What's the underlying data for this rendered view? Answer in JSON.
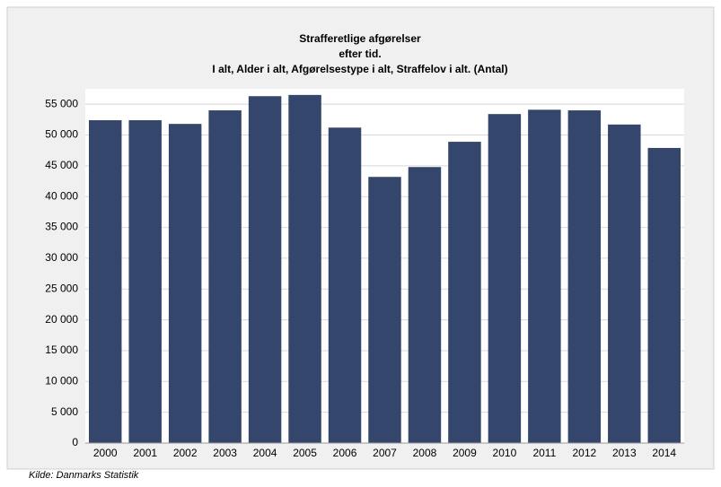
{
  "chart_data": {
    "type": "bar",
    "title": [
      "Strafferetlige afgørelser",
      "efter tid.",
      "I alt, Alder i alt, Afgørelsestype i alt, Straffelov i alt. (Antal)"
    ],
    "categories": [
      "2000",
      "2001",
      "2002",
      "2003",
      "2004",
      "2005",
      "2006",
      "2007",
      "2008",
      "2009",
      "2010",
      "2011",
      "2012",
      "2013",
      "2014"
    ],
    "values": [
      52400,
      52400,
      51800,
      54000,
      56300,
      56500,
      51200,
      43200,
      44800,
      48900,
      53400,
      54100,
      54000,
      51700,
      47900
    ],
    "color": "#34466b",
    "ylim": [
      0,
      57500
    ],
    "yticks": [
      0,
      {
        "value": 5000,
        "label": "5 000"
      },
      {
        "value": 10000,
        "label": "10 000"
      },
      {
        "value": 15000,
        "label": "15 000"
      },
      {
        "value": 20000,
        "label": "20 000"
      },
      {
        "value": 25000,
        "label": "25 000"
      },
      {
        "value": 30000,
        "label": "30 000"
      },
      {
        "value": 35000,
        "label": "35 000"
      },
      {
        "value": 40000,
        "label": "40 000"
      },
      {
        "value": 45000,
        "label": "45 000"
      },
      {
        "value": 50000,
        "label": "50 000"
      },
      {
        "value": 55000,
        "label": "55 000"
      }
    ],
    "grid": true,
    "source": "Kilde: Danmarks Statistik"
  }
}
